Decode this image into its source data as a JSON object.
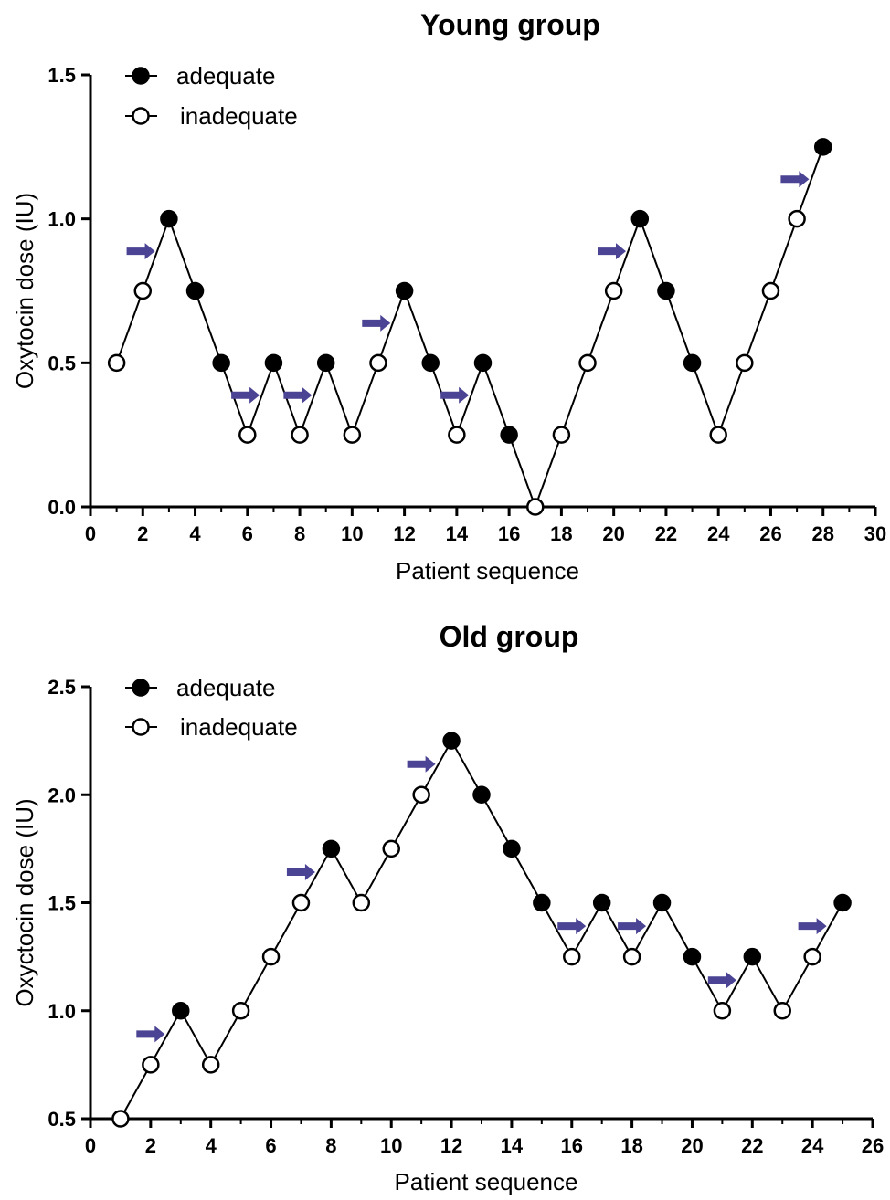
{
  "colors": {
    "line": "#000000",
    "arrow": "#4b4394",
    "marker_fill_adequate": "#000000",
    "marker_fill_inadequate": "#ffffff"
  },
  "chart_data": [
    {
      "type": "line",
      "title": "Young group",
      "xlabel": "Patient sequence",
      "ylabel": "Oxytocin dose (IU)",
      "xlim": [
        0,
        30
      ],
      "ylim": [
        0,
        1.5
      ],
      "xticks": [
        "0",
        "2",
        "4",
        "6",
        "8",
        "10",
        "12",
        "14",
        "16",
        "18",
        "20",
        "22",
        "24",
        "26",
        "28",
        "30"
      ],
      "yticks": [
        "0.0",
        "0.5",
        "1.0",
        "1.5"
      ],
      "legend": {
        "position": "top-left",
        "entries": [
          "adequate",
          "inadequate"
        ]
      },
      "series": [
        {
          "x": [
            1,
            2,
            3,
            4,
            5,
            6,
            7,
            8,
            9,
            10,
            11,
            12,
            13,
            14,
            15,
            16,
            17,
            18,
            19,
            20,
            21,
            22,
            23,
            24,
            25,
            26,
            27,
            28
          ],
          "values": [
            0.5,
            0.75,
            1.0,
            0.75,
            0.5,
            0.25,
            0.5,
            0.25,
            0.5,
            0.25,
            0.5,
            0.75,
            0.5,
            0.25,
            0.5,
            0.25,
            0.0,
            0.25,
            0.5,
            0.75,
            1.0,
            0.75,
            0.5,
            0.25,
            0.5,
            0.75,
            1.0,
            1.25
          ],
          "status": [
            "inadequate",
            "inadequate",
            "adequate",
            "adequate",
            "adequate",
            "inadequate",
            "adequate",
            "inadequate",
            "adequate",
            "inadequate",
            "inadequate",
            "adequate",
            "adequate",
            "inadequate",
            "adequate",
            "adequate",
            "inadequate",
            "inadequate",
            "inadequate",
            "inadequate",
            "adequate",
            "adequate",
            "adequate",
            "inadequate",
            "inadequate",
            "inadequate",
            "inadequate",
            "adequate"
          ]
        }
      ],
      "arrows_before_patient": [
        3,
        7,
        9,
        12,
        15,
        21,
        28
      ]
    },
    {
      "type": "line",
      "title": "Old group",
      "xlabel": "Patient sequence",
      "ylabel": "Oxyctocin dose (IU)",
      "xlim": [
        0,
        26
      ],
      "ylim": [
        0.5,
        2.5
      ],
      "xticks": [
        "0",
        "2",
        "4",
        "6",
        "8",
        "10",
        "12",
        "14",
        "16",
        "18",
        "20",
        "22",
        "24",
        "26"
      ],
      "yticks": [
        "0.5",
        "1.0",
        "1.5",
        "2.0",
        "2.5"
      ],
      "legend": {
        "position": "top-left",
        "entries": [
          "adequate",
          "inadequate"
        ]
      },
      "series": [
        {
          "x": [
            1,
            2,
            3,
            4,
            5,
            6,
            7,
            8,
            9,
            10,
            11,
            12,
            13,
            14,
            15,
            16,
            17,
            18,
            19,
            20,
            21,
            22,
            23,
            24,
            25
          ],
          "values": [
            0.5,
            0.75,
            1.0,
            0.75,
            1.0,
            1.25,
            1.5,
            1.75,
            1.5,
            1.75,
            2.0,
            2.25,
            2.0,
            1.75,
            1.5,
            1.25,
            1.5,
            1.25,
            1.5,
            1.25,
            1.0,
            1.25,
            1.0,
            1.25,
            1.5
          ],
          "status": [
            "inadequate",
            "inadequate",
            "adequate",
            "inadequate",
            "inadequate",
            "inadequate",
            "inadequate",
            "adequate",
            "inadequate",
            "inadequate",
            "inadequate",
            "adequate",
            "adequate",
            "adequate",
            "adequate",
            "inadequate",
            "adequate",
            "inadequate",
            "adequate",
            "adequate",
            "inadequate",
            "adequate",
            "inadequate",
            "inadequate",
            "adequate"
          ]
        }
      ],
      "arrows_before_patient": [
        3,
        8,
        12,
        17,
        19,
        22,
        25
      ]
    }
  ]
}
